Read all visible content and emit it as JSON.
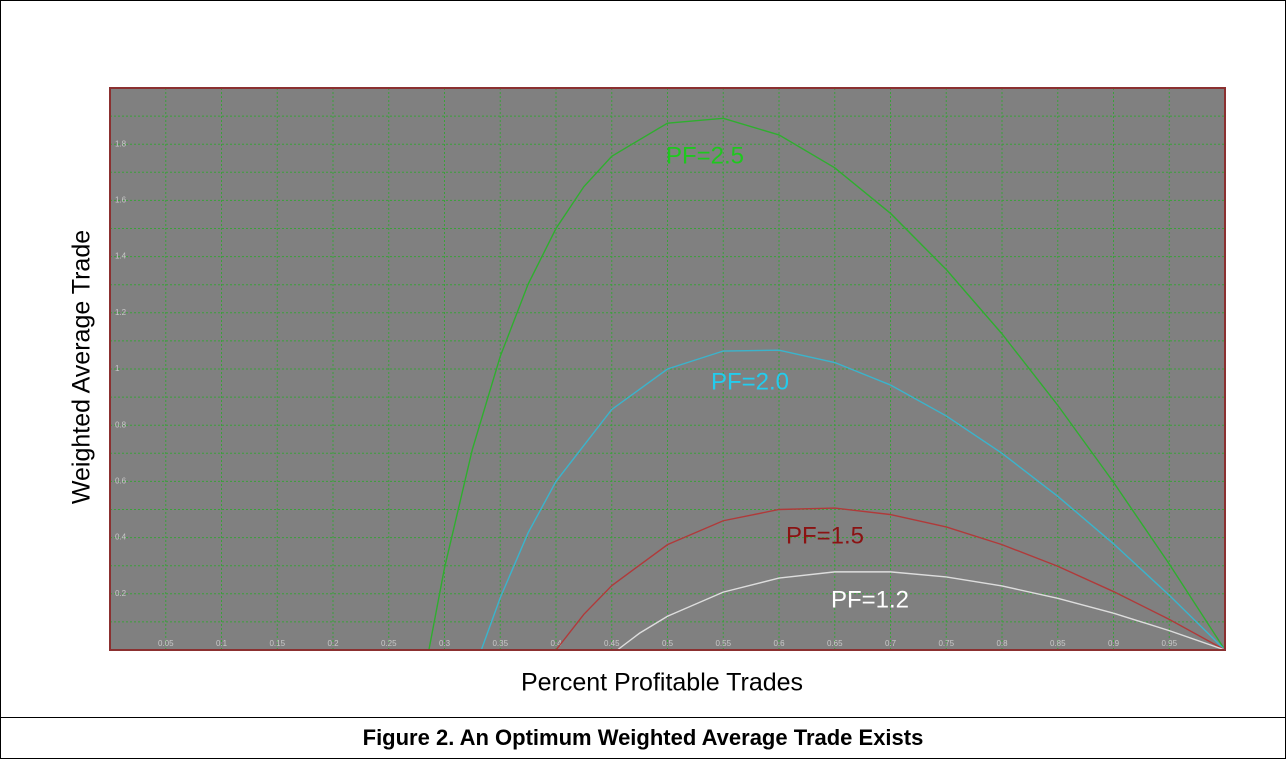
{
  "chart_data": {
    "type": "line",
    "title": "Figure 2.  An Optimum Weighted Average Trade Exists",
    "x_label": "Percent Profitable Trades",
    "y_label": "Weighted Average Trade",
    "xlim": [
      0,
      1
    ],
    "ylim": [
      0,
      2
    ],
    "xticks": [
      0.05,
      0.1,
      0.15,
      0.2,
      0.25,
      0.3,
      0.35,
      0.4,
      0.45,
      0.5,
      0.55,
      0.6,
      0.65,
      0.7,
      0.75,
      0.8,
      0.85,
      0.9,
      0.95
    ],
    "yticks": [
      0.2,
      0.4,
      0.6,
      0.8,
      1,
      1.2,
      1.4,
      1.6,
      1.8
    ],
    "y_minor_grid": [
      0.1,
      0.3,
      0.5,
      0.7,
      0.9,
      1.1,
      1.3,
      1.5,
      1.7,
      1.9
    ],
    "grid": true,
    "background": "#808080",
    "grid_color": "#3aa03a",
    "series": [
      {
        "name": "PF=2.5",
        "color": "#2fae2f",
        "label_color": "#1ec81e",
        "x": [
          0.286,
          0.3,
          0.325,
          0.35,
          0.375,
          0.4,
          0.425,
          0.45,
          0.5,
          0.55,
          0.6,
          0.65,
          0.7,
          0.75,
          0.8,
          0.85,
          0.9,
          0.95,
          1
        ],
        "values": [
          0,
          0.292,
          0.714,
          1.045,
          1.302,
          1.5,
          1.649,
          1.757,
          1.875,
          1.892,
          1.833,
          1.716,
          1.554,
          1.354,
          1.125,
          0.871,
          0.597,
          0.306,
          0
        ]
      },
      {
        "name": "PF=2.0",
        "color": "#3ab4cc",
        "label_color": "#22ccee",
        "x": [
          0.333,
          0.35,
          0.375,
          0.4,
          0.45,
          0.5,
          0.55,
          0.6,
          0.65,
          0.7,
          0.75,
          0.8,
          0.85,
          0.9,
          0.95,
          1
        ],
        "values": [
          0,
          0.186,
          0.417,
          0.6,
          0.856,
          1.0,
          1.064,
          1.067,
          1.023,
          0.943,
          0.833,
          0.7,
          0.547,
          0.378,
          0.195,
          0
        ]
      },
      {
        "name": "PF=1.5",
        "color": "#b03a3a",
        "label_color": "#8b1212",
        "x": [
          0.4,
          0.425,
          0.45,
          0.5,
          0.55,
          0.6,
          0.65,
          0.7,
          0.75,
          0.8,
          0.85,
          0.9,
          0.95,
          1
        ],
        "values": [
          0,
          0.127,
          0.229,
          0.375,
          0.46,
          0.5,
          0.505,
          0.482,
          0.438,
          0.375,
          0.298,
          0.208,
          0.109,
          0
        ]
      },
      {
        "name": "PF=1.2",
        "color": "#dddddd",
        "label_color": "#ffffff",
        "x": [
          0.455,
          0.475,
          0.5,
          0.55,
          0.6,
          0.65,
          0.7,
          0.75,
          0.8,
          0.85,
          0.9,
          0.95,
          1
        ],
        "values": [
          0,
          0.06,
          0.12,
          0.206,
          0.256,
          0.278,
          0.278,
          0.26,
          0.228,
          0.184,
          0.131,
          0.069,
          0
        ]
      }
    ]
  }
}
